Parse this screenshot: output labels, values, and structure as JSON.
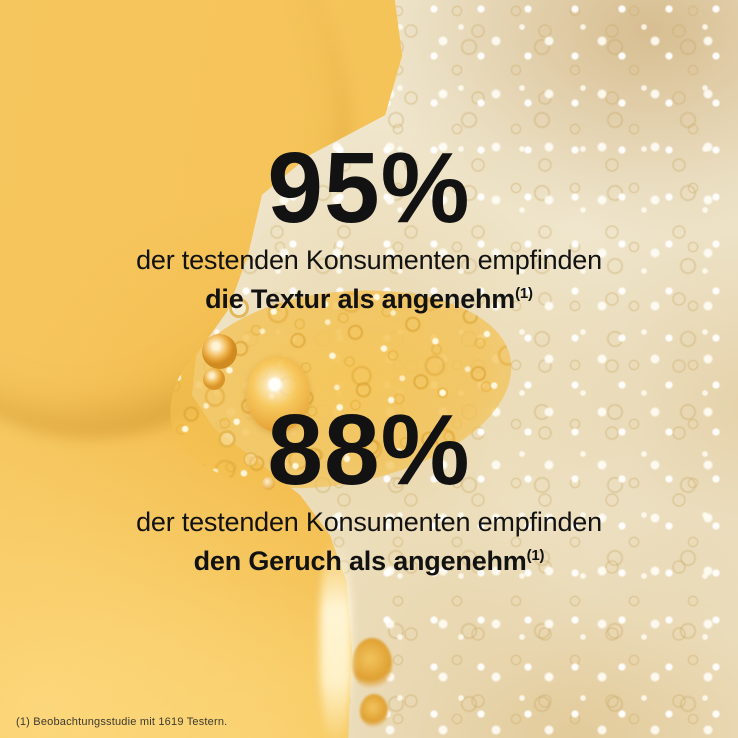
{
  "stats": [
    {
      "value": "95%",
      "description": "der testenden Konsumenten empfinden",
      "claim": "die Textur als angenehm",
      "footnote_ref": "(1)"
    },
    {
      "value": "88%",
      "description": "der testenden Konsumenten empfinden",
      "claim": "den Geruch als angenehm",
      "footnote_ref": "(1)"
    }
  ],
  "footnote": "(1) Beobachtungsstudie mit 1619 Testern.",
  "colors": {
    "base_yellow": "#f6c55c",
    "base_yellow_light": "#f9d176",
    "base_yellow_deep": "#edb647",
    "foam_cream": "#f0e7cf",
    "foam_white": "#fdfaf0",
    "foam_shadow": "#cfae6d",
    "bubble_gold": "#e9a93c",
    "bubble_gold_deep": "#cf8b1f",
    "text": "#121212",
    "footnote_text": "#3d3a31"
  }
}
